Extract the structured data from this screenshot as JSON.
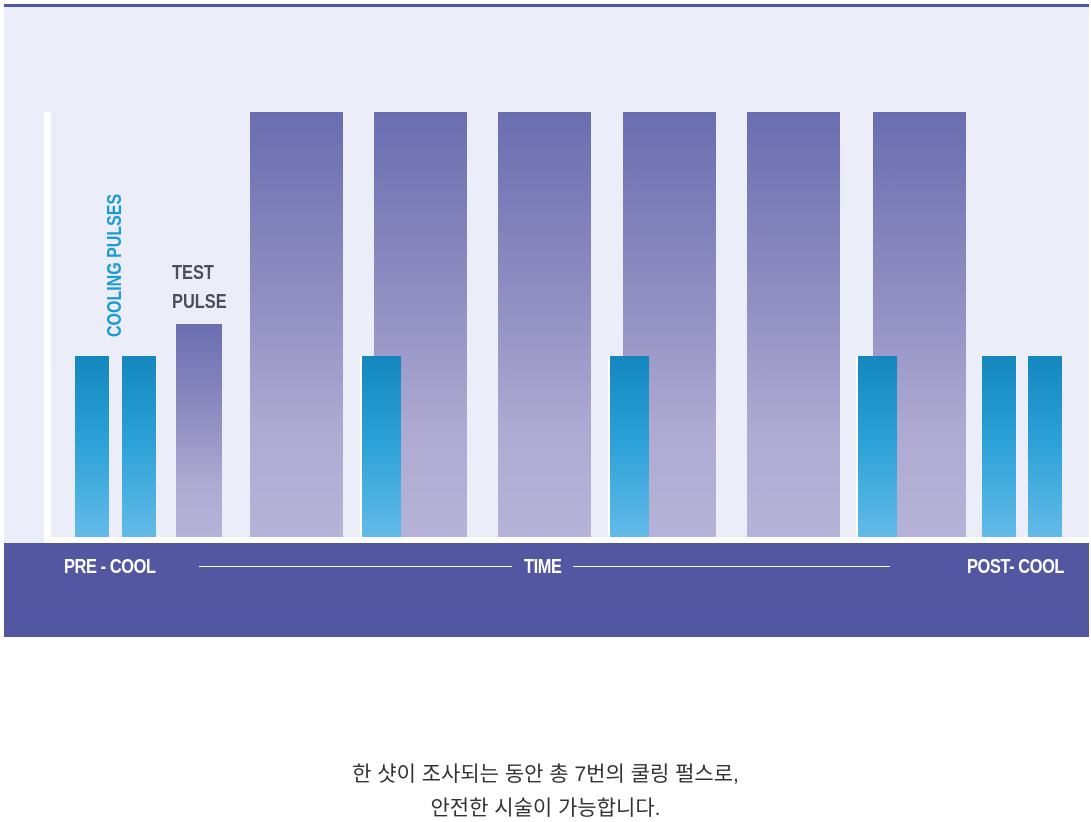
{
  "labels": {
    "cooling_pulses": "COOLING PULSES",
    "test_pulse_line1": "TEST",
    "test_pulse_line2": "PULSE",
    "pre_cool": "PRE - COOL",
    "time": "TIME",
    "post_cool": "POST- COOL"
  },
  "caption": {
    "line1": "한 샷이 조사되는 동안 총 7번의 쿨링 펄스로,",
    "line2": "안전한 시술이 가능합니다."
  },
  "colors": {
    "panel": "#ebedf9",
    "band": "#5356a0",
    "pulse_purple": "#6a6db0",
    "pulse_cyan": "#1387be"
  }
}
